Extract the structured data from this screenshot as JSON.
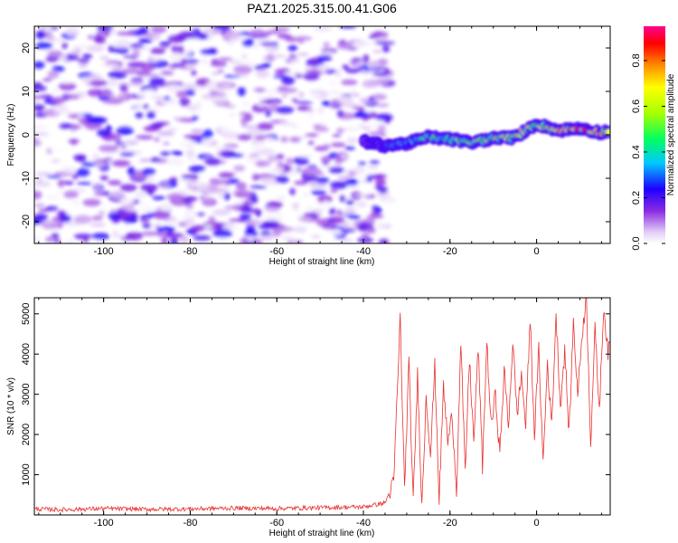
{
  "title": "PAZ1.2025.315.00.41.G06",
  "chart_data": [
    {
      "type": "heatmap",
      "xlabel": "Height of straight line (km)",
      "ylabel": "Frequency (Hz)",
      "xlim": [
        -116,
        17
      ],
      "ylim": [
        -25,
        25
      ],
      "xticks": [
        -100,
        -80,
        -60,
        -40,
        -20,
        0
      ],
      "yticks": [
        -20,
        -10,
        0,
        10,
        20
      ],
      "colorbar": {
        "label": "Normalized spectral amplitude",
        "range": [
          0.0,
          0.95
        ],
        "ticks": [
          0.0,
          0.2,
          0.4,
          0.6,
          0.8
        ],
        "tick_labels": [
          "0.0",
          "0.2",
          "0.4",
          "0.6",
          "0.8"
        ]
      },
      "noise_region": {
        "x_range": [
          -116,
          -34
        ],
        "freq_range": [
          -25,
          25
        ],
        "amplitude_range": [
          0.0,
          0.25
        ]
      },
      "signal_track": {
        "x": [
          -40,
          -35,
          -30,
          -25,
          -20,
          -15,
          -10,
          -5,
          0,
          5,
          10,
          15,
          17
        ],
        "frequency": [
          -1.5,
          -2.5,
          -2.0,
          -0.5,
          -1.0,
          -1.8,
          -0.8,
          -0.6,
          2.5,
          1.0,
          1.5,
          0.5,
          1.0
        ],
        "amplitude": [
          0.15,
          0.25,
          0.35,
          0.45,
          0.5,
          0.55,
          0.65,
          0.7,
          0.6,
          0.7,
          0.85,
          0.75,
          0.65
        ]
      }
    },
    {
      "type": "line",
      "xlabel": "Height of straight line (km)",
      "ylabel": "SNR (10 * v/v)",
      "xlim": [
        -116,
        17
      ],
      "ylim": [
        0,
        5400
      ],
      "xticks": [
        -100,
        -80,
        -60,
        -40,
        -20,
        0
      ],
      "yticks": [
        1000,
        2000,
        3000,
        4000,
        5000
      ],
      "color": "#e8312f",
      "series": [
        {
          "name": "SNR",
          "x": [
            -116,
            -110,
            -100,
            -90,
            -80,
            -70,
            -60,
            -50,
            -40,
            -35,
            -33,
            -31.5,
            -30.5,
            -29.5,
            -28.5,
            -27.5,
            -26.5,
            -25.5,
            -24.5,
            -23.5,
            -22.5,
            -21.5,
            -20.5,
            -19.5,
            -18.5,
            -17.5,
            -16.5,
            -15.5,
            -14.5,
            -13.5,
            -12.5,
            -11.5,
            -10.5,
            -9.5,
            -8.5,
            -7.5,
            -6.5,
            -5.5,
            -4.5,
            -3.5,
            -2.5,
            -1.5,
            -0.5,
            0.5,
            1.5,
            2.5,
            3.5,
            4.5,
            5.5,
            6.5,
            7.5,
            8.5,
            9.5,
            10.5,
            11.5,
            12.5,
            13.5,
            14.5,
            15.5,
            16.5,
            17
          ],
          "y": [
            150,
            130,
            160,
            140,
            150,
            170,
            160,
            180,
            200,
            300,
            800,
            4900,
            600,
            3800,
            300,
            3500,
            200,
            3000,
            1500,
            3700,
            400,
            3200,
            1800,
            2500,
            600,
            4300,
            1000,
            3900,
            1800,
            4200,
            1200,
            4300,
            2200,
            3000,
            1500,
            3600,
            2200,
            4300,
            2500,
            3500,
            2200,
            4900,
            2000,
            4100,
            1300,
            3800,
            2200,
            5000,
            2700,
            4100,
            2000,
            4800,
            3000,
            4500,
            5400,
            1800,
            4600,
            2600,
            5200,
            4000,
            4300
          ]
        }
      ]
    }
  ]
}
